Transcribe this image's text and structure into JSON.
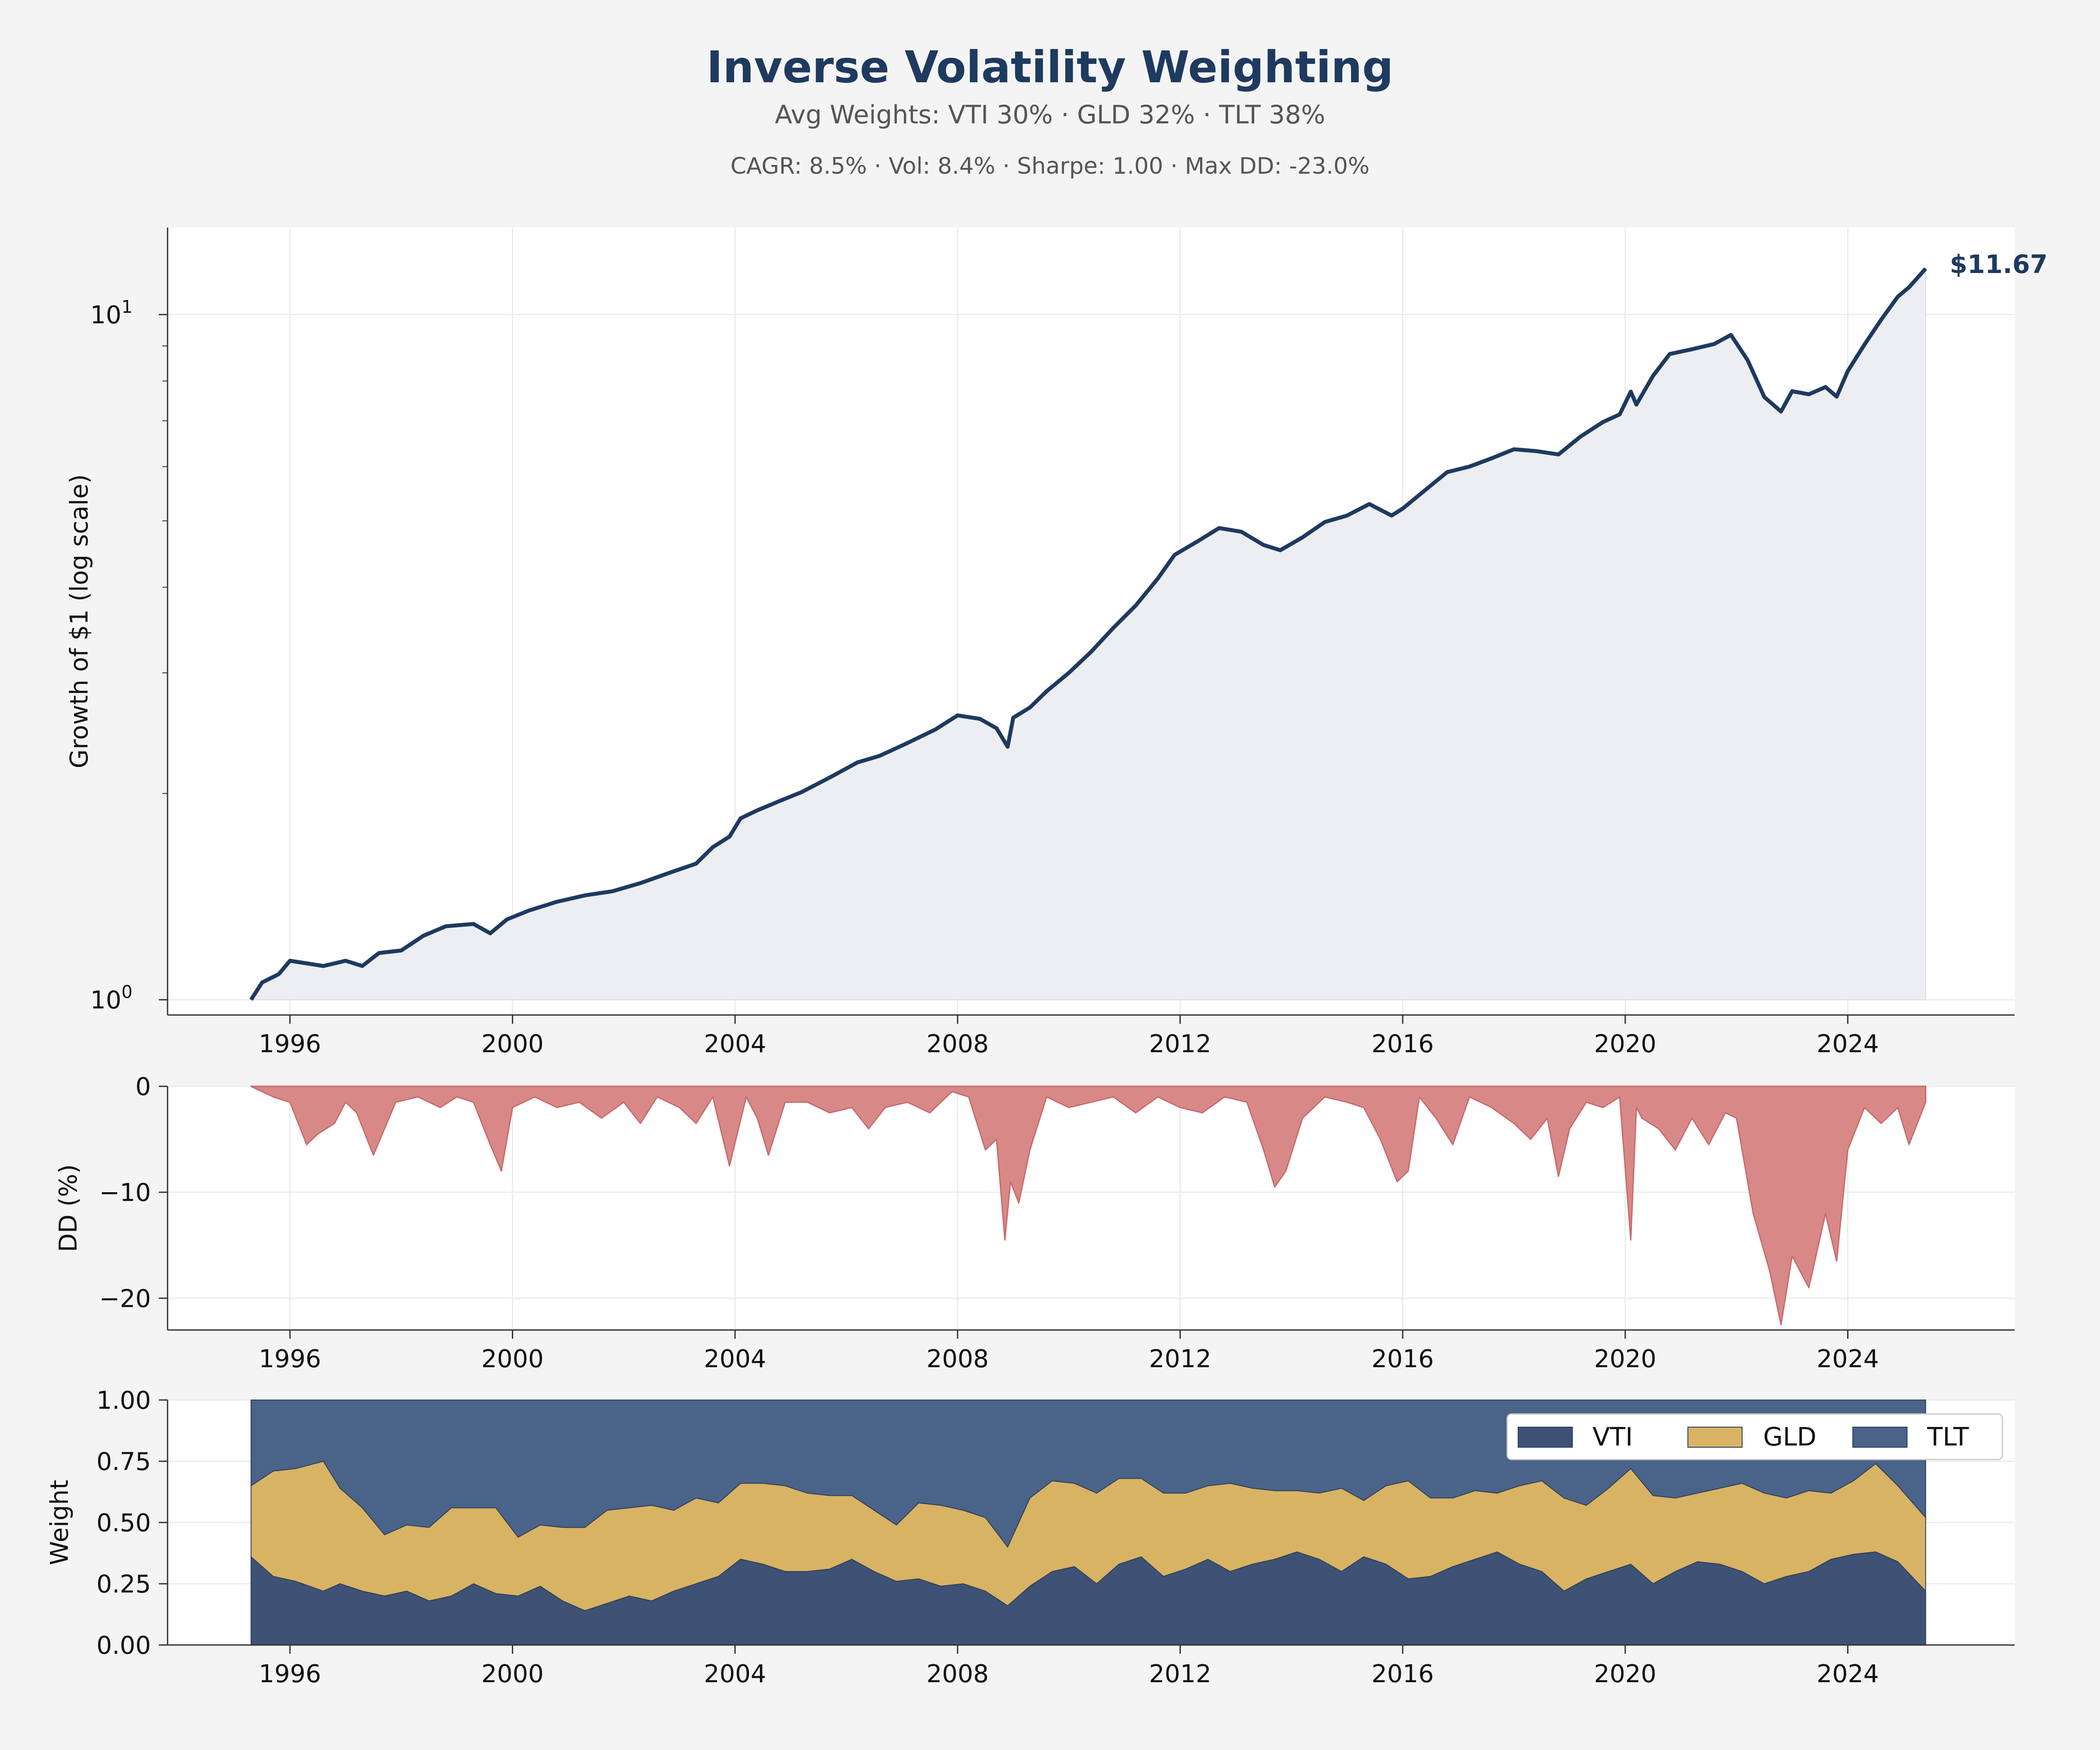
{
  "title": "Inverse Volatility Weighting",
  "subtitle": "Avg Weights: VTI 30% · GLD 32% · TLT 38%",
  "stats_line": "CAGR: 8.5%  ·  Vol: 8.4%  ·  Sharpe: 1.00  ·  Max DD: -23.0%",
  "colors": {
    "background": "#f4f4f4",
    "title": "#1e3a5f",
    "text_muted": "#555555",
    "equity_line": "#1e3a5f",
    "equity_fill": "#eceef2",
    "drawdown": "#d98888",
    "drawdown_edge": "#c96a6a",
    "vti": "#3d5275",
    "gld": "#d8b363",
    "tlt": "#4a6388"
  },
  "chart_data": [
    {
      "type": "line",
      "name": "growth",
      "ylabel": "Growth of $1 (log scale)",
      "yscale": "log",
      "ylim": [
        0.95,
        13.4
      ],
      "xlim": [
        1993.8,
        2027.0
      ],
      "yticks": [
        {
          "value": 1,
          "label": "10",
          "exp": "0"
        },
        {
          "value": 10,
          "label": "10",
          "exp": "1"
        }
      ],
      "xticks": [
        "1996",
        "2000",
        "2004",
        "2008",
        "2012",
        "2016",
        "2020",
        "2024"
      ],
      "grid": true,
      "end_label": "$11.67",
      "x": [
        1995.3,
        1995.5,
        1995.8,
        1996.0,
        1996.3,
        1996.6,
        1997.0,
        1997.3,
        1997.6,
        1998.0,
        1998.4,
        1998.8,
        1999.3,
        1999.6,
        1999.9,
        2000.3,
        2000.8,
        2001.3,
        2001.8,
        2002.3,
        2002.8,
        2003.3,
        2003.6,
        2003.9,
        2004.1,
        2004.4,
        2004.8,
        2005.2,
        2005.7,
        2006.2,
        2006.6,
        2007.1,
        2007.6,
        2008.0,
        2008.4,
        2008.7,
        2008.9,
        2009.0,
        2009.3,
        2009.6,
        2010.0,
        2010.4,
        2010.8,
        2011.2,
        2011.6,
        2011.9,
        2012.3,
        2012.7,
        2013.1,
        2013.5,
        2013.8,
        2014.2,
        2014.6,
        2015.0,
        2015.4,
        2015.8,
        2016.0,
        2016.4,
        2016.8,
        2017.2,
        2017.6,
        2018.0,
        2018.4,
        2018.8,
        2019.2,
        2019.6,
        2019.9,
        2020.1,
        2020.2,
        2020.5,
        2020.8,
        2021.2,
        2021.6,
        2021.9,
        2022.2,
        2022.5,
        2022.8,
        2023.0,
        2023.3,
        2023.6,
        2023.8,
        2024.0,
        2024.3,
        2024.6,
        2024.9,
        2025.1,
        2025.4
      ],
      "y": [
        1.0,
        1.06,
        1.09,
        1.14,
        1.13,
        1.12,
        1.14,
        1.12,
        1.17,
        1.18,
        1.24,
        1.28,
        1.29,
        1.25,
        1.31,
        1.35,
        1.39,
        1.42,
        1.44,
        1.48,
        1.53,
        1.58,
        1.67,
        1.73,
        1.84,
        1.89,
        1.95,
        2.01,
        2.11,
        2.22,
        2.27,
        2.37,
        2.48,
        2.6,
        2.57,
        2.49,
        2.34,
        2.58,
        2.67,
        2.82,
        3.0,
        3.22,
        3.49,
        3.76,
        4.12,
        4.46,
        4.66,
        4.88,
        4.82,
        4.61,
        4.53,
        4.73,
        4.98,
        5.09,
        5.29,
        5.09,
        5.21,
        5.54,
        5.89,
        6.0,
        6.17,
        6.36,
        6.32,
        6.25,
        6.64,
        6.97,
        7.15,
        7.72,
        7.39,
        8.14,
        8.76,
        8.9,
        9.06,
        9.34,
        8.58,
        7.58,
        7.22,
        7.73,
        7.65,
        7.84,
        7.59,
        8.27,
        9.04,
        9.83,
        10.62,
        10.96,
        11.67
      ]
    },
    {
      "type": "area",
      "name": "drawdown",
      "ylabel": "DD (%)",
      "ylim": [
        -23.0,
        0
      ],
      "yticks": [
        0,
        -10,
        -20
      ],
      "grid": true,
      "x": [
        1995.3,
        1995.7,
        1996.0,
        1996.3,
        1996.5,
        1996.8,
        1997.0,
        1997.2,
        1997.5,
        1997.9,
        1998.3,
        1998.7,
        1999.0,
        1999.3,
        1999.6,
        1999.8,
        2000.0,
        2000.4,
        2000.8,
        2001.2,
        2001.6,
        2002.0,
        2002.3,
        2002.6,
        2003.0,
        2003.3,
        2003.6,
        2003.9,
        2004.2,
        2004.4,
        2004.6,
        2004.9,
        2005.3,
        2005.7,
        2006.1,
        2006.4,
        2006.7,
        2007.1,
        2007.5,
        2007.9,
        2008.2,
        2008.5,
        2008.7,
        2008.85,
        2008.95,
        2009.1,
        2009.3,
        2009.6,
        2010.0,
        2010.4,
        2010.8,
        2011.2,
        2011.6,
        2012.0,
        2012.4,
        2012.8,
        2013.2,
        2013.5,
        2013.7,
        2013.9,
        2014.2,
        2014.6,
        2015.0,
        2015.3,
        2015.6,
        2015.9,
        2016.1,
        2016.3,
        2016.6,
        2016.9,
        2017.2,
        2017.6,
        2018.0,
        2018.3,
        2018.6,
        2018.8,
        2019.0,
        2019.3,
        2019.6,
        2019.9,
        2020.1,
        2020.2,
        2020.3,
        2020.6,
        2020.9,
        2021.2,
        2021.5,
        2021.8,
        2022.0,
        2022.3,
        2022.6,
        2022.8,
        2023.0,
        2023.3,
        2023.6,
        2023.8,
        2024.0,
        2024.3,
        2024.6,
        2024.9,
        2025.1,
        2025.4
      ],
      "y": [
        0,
        -1.0,
        -1.5,
        -5.5,
        -4.5,
        -3.5,
        -1.5,
        -2.5,
        -6.5,
        -1.5,
        -1.0,
        -2.0,
        -1.0,
        -1.5,
        -5.5,
        -8.0,
        -2.0,
        -1.0,
        -2.0,
        -1.5,
        -3.0,
        -1.5,
        -3.5,
        -1.0,
        -2.0,
        -3.5,
        -1.0,
        -7.5,
        -1.0,
        -3.0,
        -6.5,
        -1.5,
        -1.5,
        -2.5,
        -2.0,
        -4.0,
        -2.0,
        -1.5,
        -2.5,
        -0.5,
        -1.0,
        -6.0,
        -5.0,
        -14.5,
        -9.0,
        -11.0,
        -6.0,
        -1.0,
        -2.0,
        -1.5,
        -1.0,
        -2.5,
        -1.0,
        -2.0,
        -2.5,
        -1.0,
        -1.5,
        -6.0,
        -9.5,
        -8.0,
        -3.0,
        -1.0,
        -1.5,
        -2.0,
        -5.0,
        -9.0,
        -8.0,
        -1.0,
        -3.0,
        -5.5,
        -1.0,
        -2.0,
        -3.5,
        -5.0,
        -3.0,
        -8.5,
        -4.0,
        -1.5,
        -2.0,
        -1.0,
        -14.5,
        -2.0,
        -3.0,
        -4.0,
        -6.0,
        -3.0,
        -5.5,
        -2.5,
        -3.0,
        -12.0,
        -17.5,
        -22.5,
        -16.0,
        -19.0,
        -12.0,
        -16.5,
        -6.0,
        -2.0,
        -3.5,
        -2.0,
        -5.5,
        -1.5
      ]
    },
    {
      "type": "area",
      "name": "weights",
      "stacked": true,
      "ylabel": "Weight",
      "ylim": [
        0,
        1
      ],
      "yticks": [
        "0.00",
        "0.25",
        "0.50",
        "0.75",
        "1.00"
      ],
      "grid": true,
      "legend": "top-right",
      "x": [
        1995.3,
        1995.7,
        1996.1,
        1996.6,
        1996.9,
        1997.3,
        1997.7,
        1998.1,
        1998.5,
        1998.9,
        1999.3,
        1999.7,
        2000.1,
        2000.5,
        2000.9,
        2001.3,
        2001.7,
        2002.1,
        2002.5,
        2002.9,
        2003.3,
        2003.7,
        2004.1,
        2004.5,
        2004.9,
        2005.3,
        2005.7,
        2006.1,
        2006.5,
        2006.9,
        2007.3,
        2007.7,
        2008.1,
        2008.5,
        2008.9,
        2009.3,
        2009.7,
        2010.1,
        2010.5,
        2010.9,
        2011.3,
        2011.7,
        2012.1,
        2012.5,
        2012.9,
        2013.3,
        2013.7,
        2014.1,
        2014.5,
        2014.9,
        2015.3,
        2015.7,
        2016.1,
        2016.5,
        2016.9,
        2017.3,
        2017.7,
        2018.1,
        2018.5,
        2018.9,
        2019.3,
        2019.7,
        2020.1,
        2020.5,
        2020.9,
        2021.3,
        2021.7,
        2022.1,
        2022.5,
        2022.9,
        2023.3,
        2023.7,
        2024.1,
        2024.5,
        2024.9,
        2025.4
      ],
      "series": [
        {
          "name": "VTI",
          "values": [
            0.36,
            0.28,
            0.26,
            0.22,
            0.25,
            0.22,
            0.2,
            0.22,
            0.18,
            0.2,
            0.25,
            0.21,
            0.2,
            0.24,
            0.18,
            0.14,
            0.17,
            0.2,
            0.18,
            0.22,
            0.25,
            0.28,
            0.35,
            0.33,
            0.3,
            0.3,
            0.31,
            0.35,
            0.3,
            0.26,
            0.27,
            0.24,
            0.25,
            0.22,
            0.16,
            0.24,
            0.3,
            0.32,
            0.25,
            0.33,
            0.36,
            0.28,
            0.31,
            0.35,
            0.3,
            0.33,
            0.35,
            0.38,
            0.35,
            0.3,
            0.36,
            0.33,
            0.27,
            0.28,
            0.32,
            0.35,
            0.38,
            0.33,
            0.3,
            0.22,
            0.27,
            0.3,
            0.33,
            0.25,
            0.3,
            0.34,
            0.33,
            0.3,
            0.25,
            0.28,
            0.3,
            0.35,
            0.37,
            0.38,
            0.34,
            0.22
          ]
        },
        {
          "name": "GLD",
          "values": [
            0.29,
            0.43,
            0.46,
            0.53,
            0.39,
            0.34,
            0.25,
            0.27,
            0.3,
            0.36,
            0.31,
            0.35,
            0.24,
            0.25,
            0.3,
            0.34,
            0.38,
            0.36,
            0.39,
            0.33,
            0.35,
            0.3,
            0.31,
            0.33,
            0.35,
            0.32,
            0.3,
            0.26,
            0.25,
            0.23,
            0.31,
            0.33,
            0.3,
            0.3,
            0.24,
            0.36,
            0.37,
            0.34,
            0.37,
            0.35,
            0.32,
            0.34,
            0.31,
            0.3,
            0.36,
            0.31,
            0.28,
            0.25,
            0.27,
            0.34,
            0.23,
            0.32,
            0.4,
            0.32,
            0.28,
            0.28,
            0.24,
            0.32,
            0.37,
            0.38,
            0.3,
            0.34,
            0.39,
            0.36,
            0.3,
            0.28,
            0.31,
            0.36,
            0.37,
            0.32,
            0.33,
            0.27,
            0.3,
            0.36,
            0.31,
            0.3
          ]
        },
        {
          "name": "TLT",
          "values": [
            0.35,
            0.29,
            0.28,
            0.25,
            0.36,
            0.44,
            0.55,
            0.51,
            0.52,
            0.44,
            0.44,
            0.44,
            0.56,
            0.51,
            0.52,
            0.52,
            0.45,
            0.44,
            0.43,
            0.45,
            0.4,
            0.42,
            0.34,
            0.34,
            0.35,
            0.38,
            0.39,
            0.39,
            0.45,
            0.51,
            0.42,
            0.43,
            0.45,
            0.48,
            0.6,
            0.4,
            0.33,
            0.34,
            0.38,
            0.32,
            0.32,
            0.38,
            0.38,
            0.35,
            0.34,
            0.36,
            0.37,
            0.37,
            0.38,
            0.36,
            0.41,
            0.35,
            0.33,
            0.4,
            0.4,
            0.37,
            0.38,
            0.35,
            0.33,
            0.4,
            0.43,
            0.36,
            0.28,
            0.39,
            0.4,
            0.38,
            0.36,
            0.34,
            0.38,
            0.4,
            0.37,
            0.38,
            0.33,
            0.26,
            0.35,
            0.48
          ]
        }
      ]
    }
  ]
}
